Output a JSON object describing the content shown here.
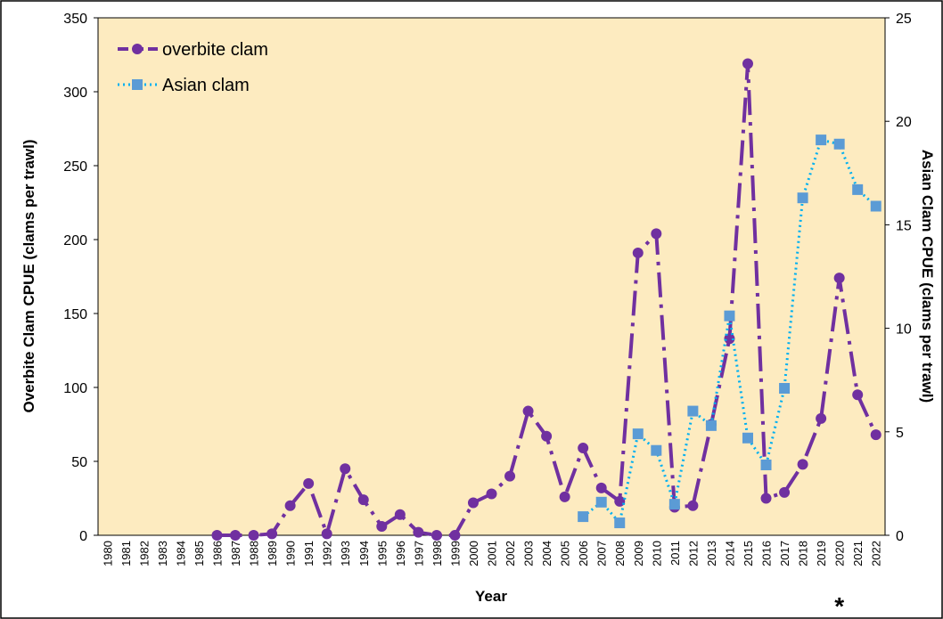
{
  "chart_data": {
    "type": "line",
    "x_label": "Year",
    "y_label": "Overbite Clam CPUE (clams per trawl)",
    "y2_label": "Asian Clam CPUE (clams per trawl)",
    "annotation": "*",
    "annotation_category": 40,
    "background": "#fdebc0",
    "legend": "top-left",
    "categories": [
      "1980",
      "1981",
      "1982",
      "1983",
      "1984",
      "1985",
      "1986",
      "1987",
      "1988",
      "1989",
      "1990",
      "1991",
      "1992",
      "1993",
      "1994",
      "1995",
      "1996",
      "1997",
      "1998",
      "1999",
      "2000",
      "2001",
      "2002",
      "2003",
      "2004",
      "2005",
      "2006",
      "2007",
      "2008",
      "2009",
      "2010",
      "2011",
      "2012",
      "2013",
      "2014",
      "2015",
      "2016",
      "2017",
      "2018",
      "2019",
      "2020",
      "2021",
      "2022"
    ],
    "ylim": [
      0,
      350
    ],
    "yticks": [
      0,
      50,
      100,
      150,
      200,
      250,
      300,
      350
    ],
    "y2lim": [
      0,
      25
    ],
    "y2ticks": [
      0,
      5,
      10,
      15,
      20,
      25
    ],
    "series": [
      {
        "name": "overbite clam",
        "color": "#7030a0",
        "marker": "circle",
        "dash": "28 8 4 8",
        "values": [
          null,
          null,
          null,
          null,
          null,
          null,
          0,
          0,
          0,
          1,
          20,
          35,
          1,
          45,
          24,
          6,
          14,
          2,
          0,
          0,
          22,
          28,
          40,
          84,
          67,
          26,
          59,
          32,
          23,
          191,
          204,
          19,
          20,
          75,
          133,
          319,
          25,
          29,
          48,
          79,
          174,
          95,
          68
        ]
      },
      {
        "name": "Asian clam",
        "color": "#5b9bd5",
        "line_color": "#00b0f0",
        "marker": "square",
        "dash": "2 4",
        "axis": "y2",
        "values": [
          null,
          null,
          null,
          null,
          null,
          null,
          null,
          null,
          null,
          null,
          null,
          null,
          null,
          null,
          null,
          null,
          null,
          null,
          null,
          null,
          null,
          null,
          null,
          null,
          null,
          null,
          0.9,
          1.6,
          0.6,
          4.9,
          4.1,
          1.5,
          6.0,
          5.3,
          10.6,
          4.7,
          3.4,
          7.1,
          16.3,
          19.1,
          18.9,
          16.7,
          15.9
        ]
      }
    ]
  }
}
